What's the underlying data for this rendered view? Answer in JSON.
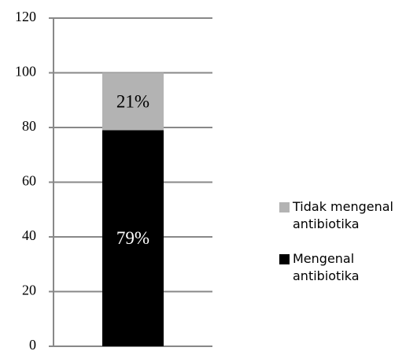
{
  "chart_data": {
    "type": "stacked-bar",
    "categories": [
      null
    ],
    "series": [
      {
        "name": "Mengenal antibiotika",
        "color": "#000000",
        "values": [
          79
        ],
        "value_labels": [
          "79%"
        ]
      },
      {
        "name": "Tidak mengenal antibiotika",
        "color": "#b3b3b3",
        "values": [
          21
        ],
        "value_labels": [
          "21%"
        ]
      }
    ],
    "ylim": [
      0,
      120
    ],
    "yticks": [
      0,
      20,
      40,
      60,
      80,
      100,
      120
    ],
    "grid": true,
    "legend": "right"
  }
}
